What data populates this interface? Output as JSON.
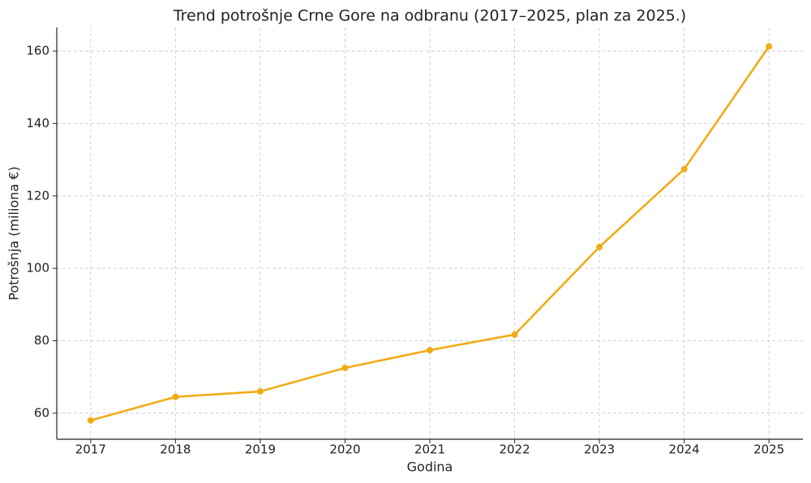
{
  "chart_data": {
    "type": "line",
    "title": "Trend potrošnje Crne Gore na odbranu (2017–2025, plan za 2025.)",
    "x_label": "Godina",
    "y_label": "Potrošnja (miliona €)",
    "x": [
      2017,
      2018,
      2019,
      2020,
      2021,
      2022,
      2023,
      2024,
      2025
    ],
    "series": [
      {
        "name": "Potrošnja",
        "color": "#f0ac16",
        "values": [
          58.0,
          64.5,
          66.0,
          72.5,
          77.4,
          81.7,
          105.9,
          127.4,
          161.3
        ]
      }
    ],
    "xlim": [
      2016.6,
      2025.4
    ],
    "xticks": [
      2017,
      2018,
      2019,
      2020,
      2021,
      2022,
      2023,
      2024,
      2025
    ],
    "ylim": [
      52.8,
      166.5
    ],
    "yticks": [
      60,
      80,
      100,
      120,
      140,
      160
    ],
    "grid": true
  }
}
